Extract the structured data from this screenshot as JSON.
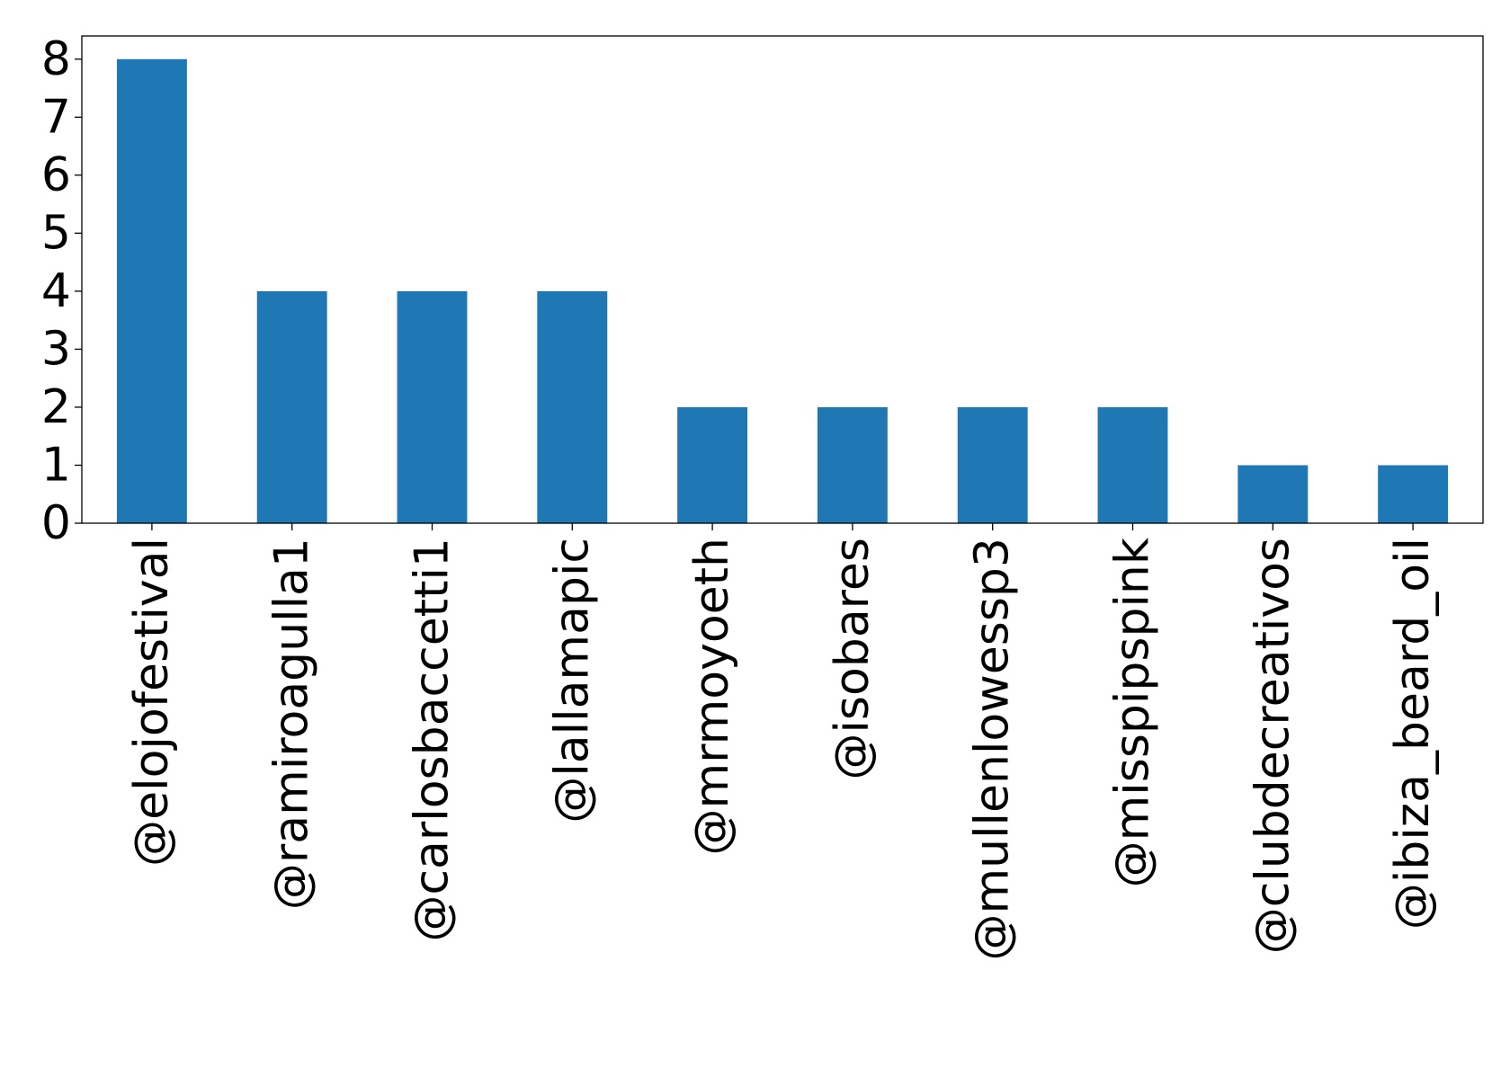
{
  "chart_data": {
    "type": "bar",
    "categories": [
      "@elojofestival",
      "@ramiroagulla1",
      "@carlosbaccetti1",
      "@lallamapic",
      "@mrmoyoeth",
      "@isobares",
      "@mullenlowessp3",
      "@misspipspink",
      "@clubdecreativos",
      "@ibiza_beard_oil"
    ],
    "values": [
      8,
      4,
      4,
      4,
      2,
      2,
      2,
      2,
      1,
      1
    ],
    "yticks": [
      "0",
      "1",
      "2",
      "3",
      "4",
      "5",
      "6",
      "7",
      "8"
    ],
    "ylim": [
      0,
      8.4
    ],
    "bar_color": "#1f77b4",
    "title": "",
    "xlabel": "",
    "ylabel": "",
    "grid": false,
    "legend": false
  }
}
